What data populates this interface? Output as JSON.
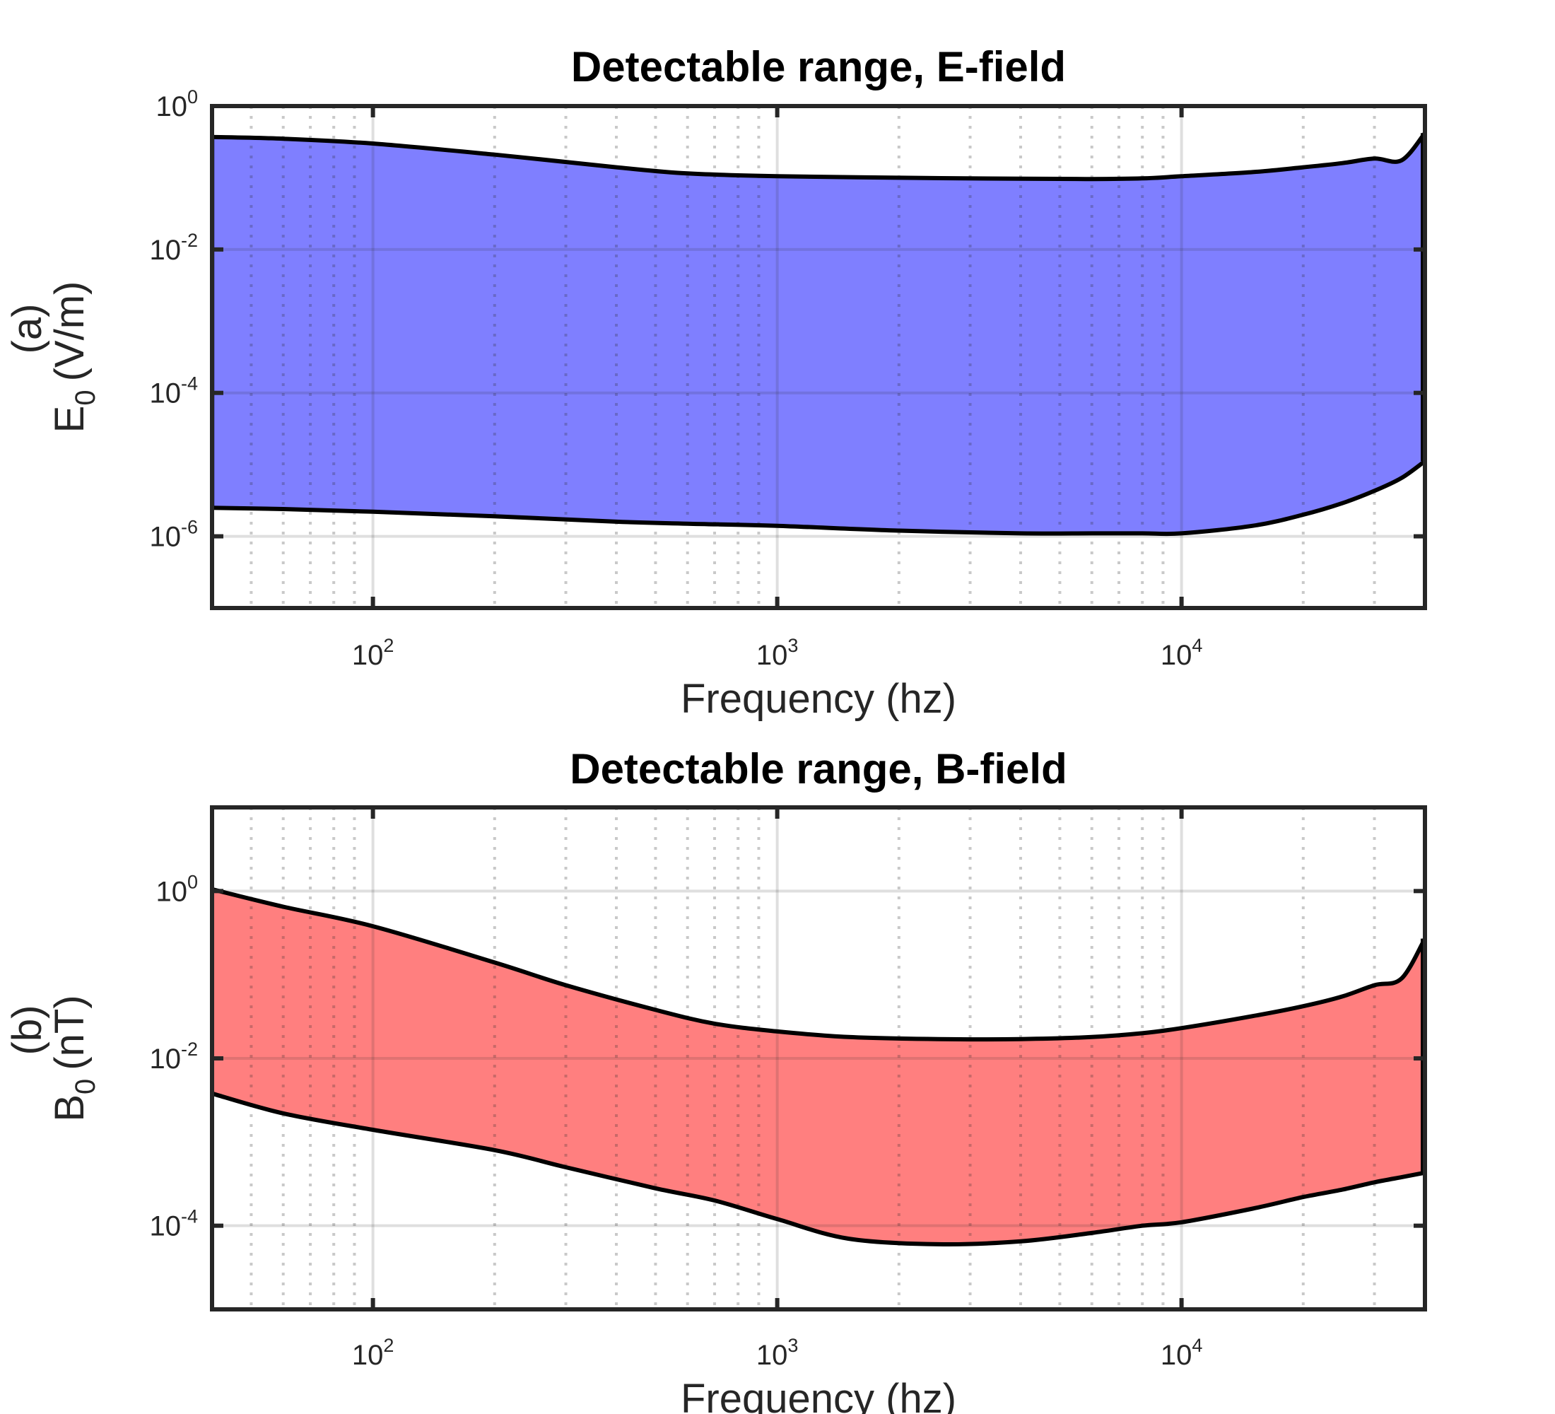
{
  "chart_data": [
    {
      "type": "area",
      "title": "Detectable range, E-field",
      "xlabel": "Frequency (hz)",
      "ylabel": {
        "panel": "(a)",
        "prefix": "E",
        "subscript": "0",
        "unit": "(V/m)"
      },
      "xscale": "log",
      "yscale": "log",
      "xlim": [
        40,
        40000
      ],
      "ylim": [
        1e-07,
        1
      ],
      "xticks": [
        {
          "value": 100,
          "base": "10",
          "exp": "2"
        },
        {
          "value": 1000,
          "base": "10",
          "exp": "3"
        },
        {
          "value": 10000,
          "base": "10",
          "exp": "4"
        }
      ],
      "yticks": [
        {
          "value": 1,
          "base": "10",
          "exp": "0"
        },
        {
          "value": 0.01,
          "base": "10",
          "exp": "-2"
        },
        {
          "value": 0.0001,
          "base": "10",
          "exp": "-4"
        },
        {
          "value": 1e-06,
          "base": "10",
          "exp": "-6"
        }
      ],
      "grid": true,
      "fill_color": "#7f7fff",
      "line_color": "#000000",
      "x": [
        40,
        60,
        100,
        200,
        400,
        600,
        1000,
        2000,
        4000,
        6000,
        8000,
        10000,
        15000,
        20000,
        25000,
        30000,
        35000,
        40000
      ],
      "upper": [
        0.37,
        0.35,
        0.3,
        0.21,
        0.14,
        0.115,
        0.105,
        0.1,
        0.097,
        0.096,
        0.098,
        0.105,
        0.12,
        0.14,
        0.16,
        0.185,
        0.175,
        0.42
      ],
      "lower": [
        2.5e-06,
        2.4e-06,
        2.2e-06,
        1.9e-06,
        1.6e-06,
        1.5e-06,
        1.4e-06,
        1.2e-06,
        1.1e-06,
        1.1e-06,
        1.1e-06,
        1.1e-06,
        1.4e-06,
        2e-06,
        2.9e-06,
        4.3e-06,
        6.5e-06,
        1.12e-05
      ]
    },
    {
      "type": "area",
      "title": "Detectable range, B-field",
      "xlabel": "Frequency (hz)",
      "ylabel": {
        "panel": "(b)",
        "prefix": "B",
        "subscript": "0",
        "unit": "(nT)"
      },
      "xscale": "log",
      "yscale": "log",
      "xlim": [
        40,
        40000
      ],
      "ylim": [
        1e-05,
        10
      ],
      "xticks": [
        {
          "value": 100,
          "base": "10",
          "exp": "2"
        },
        {
          "value": 1000,
          "base": "10",
          "exp": "3"
        },
        {
          "value": 10000,
          "base": "10",
          "exp": "4"
        }
      ],
      "yticks": [
        {
          "value": 1,
          "base": "10",
          "exp": "0"
        },
        {
          "value": 0.01,
          "base": "10",
          "exp": "-2"
        },
        {
          "value": 0.0001,
          "base": "10",
          "exp": "-4"
        }
      ],
      "grid": true,
      "fill_color": "#ff7f7f",
      "line_color": "#000000",
      "x": [
        40,
        60,
        100,
        200,
        300,
        500,
        700,
        1000,
        1500,
        2500,
        4000,
        6000,
        8000,
        10000,
        15000,
        20000,
        25000,
        30000,
        35000,
        40000
      ],
      "upper": [
        1.05,
        0.65,
        0.38,
        0.14,
        0.075,
        0.038,
        0.026,
        0.021,
        0.018,
        0.017,
        0.017,
        0.018,
        0.02,
        0.023,
        0.032,
        0.042,
        0.055,
        0.075,
        0.09,
        0.27
      ],
      "lower": [
        0.0038,
        0.0022,
        0.0014,
        0.0008,
        0.0005,
        0.00028,
        0.0002,
        0.00012,
        7e-05,
        6e-05,
        6.5e-05,
        8.2e-05,
        0.0001,
        0.00011,
        0.00016,
        0.00022,
        0.00027,
        0.00033,
        0.00038,
        0.00043
      ]
    }
  ]
}
